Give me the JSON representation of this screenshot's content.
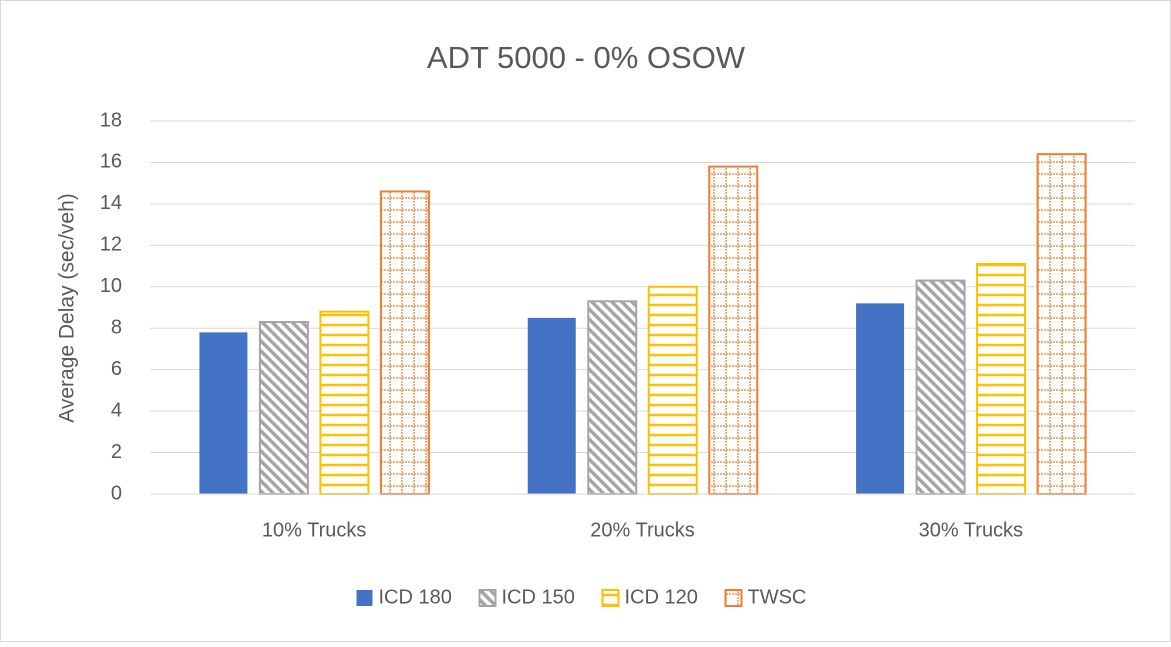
{
  "chart_data": {
    "type": "bar",
    "title": "ADT 5000 - 0% OSOW",
    "y_label": "Average Delay (sec/veh)",
    "categories": [
      "10% Trucks",
      "20% Trucks",
      "30% Trucks"
    ],
    "series": [
      {
        "name": "ICD 180",
        "color": "#4472c4",
        "pattern": "solid",
        "values": [
          7.8,
          8.5,
          9.2
        ]
      },
      {
        "name": "ICD 150",
        "color": "#a5a5a5",
        "pattern": "diagonal",
        "values": [
          8.3,
          9.3,
          10.3
        ]
      },
      {
        "name": "ICD 120",
        "color": "#ffc000",
        "pattern": "horizontal",
        "values": [
          8.8,
          10.0,
          11.1
        ]
      },
      {
        "name": "TWSC",
        "color": "#ed7d31",
        "pattern": "grid",
        "values": [
          14.6,
          15.8,
          16.4
        ]
      }
    ],
    "ylim": [
      0,
      18
    ],
    "yticks": [
      0,
      2,
      4,
      6,
      8,
      10,
      12,
      14,
      16,
      18
    ],
    "grid": true,
    "legend": "bottom"
  }
}
